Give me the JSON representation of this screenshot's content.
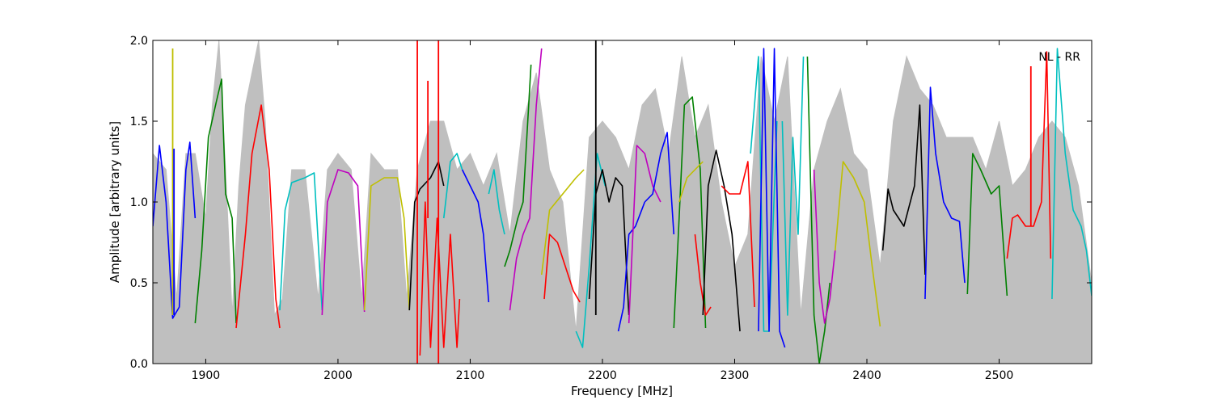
{
  "chart_data": {
    "type": "line",
    "title": "",
    "xlabel": "Frequency [MHz]",
    "ylabel": "Amplitude [arbitrary units]",
    "xlim": [
      1860,
      2570
    ],
    "ylim": [
      0.0,
      2.0
    ],
    "xticks": [
      1900,
      2000,
      2100,
      2200,
      2300,
      2400,
      2500
    ],
    "xtick_labels": [
      "1900",
      "2000",
      "2100",
      "2200",
      "2300",
      "2400",
      "2500"
    ],
    "yticks": [
      0.0,
      0.5,
      1.0,
      1.5,
      2.0
    ],
    "ytick_labels": [
      "0.0",
      "0.5",
      "1.0",
      "1.5",
      "2.0"
    ],
    "grid": false,
    "annotation": "NL - RR",
    "background_series": {
      "color": "#bfbfbf",
      "x": [
        1860,
        1870,
        1878,
        1885,
        1892,
        1900,
        1905,
        1910,
        1915,
        1920,
        1925,
        1930,
        1940,
        1945,
        1952,
        1958,
        1965,
        1975,
        1985,
        1992,
        2000,
        2010,
        2018,
        2025,
        2035,
        2045,
        2052,
        2060,
        2070,
        2080,
        2090,
        2100,
        2110,
        2120,
        2130,
        2140,
        2150,
        2160,
        2170,
        2180,
        2190,
        2200,
        2210,
        2220,
        2230,
        2240,
        2250,
        2260,
        2270,
        2280,
        2290,
        2300,
        2310,
        2320,
        2330,
        2340,
        2350,
        2360,
        2370,
        2380,
        2390,
        2400,
        2410,
        2420,
        2430,
        2440,
        2450,
        2460,
        2470,
        2480,
        2490,
        2500,
        2510,
        2520,
        2530,
        2540,
        2550,
        2560,
        2570
      ],
      "y": [
        1.3,
        1.2,
        0.4,
        1.3,
        1.3,
        0.9,
        1.6,
        2.0,
        1.2,
        0.3,
        1.1,
        1.6,
        2.0,
        1.5,
        0.3,
        0.4,
        1.2,
        1.2,
        0.4,
        1.2,
        1.3,
        1.2,
        0.4,
        1.3,
        1.2,
        1.2,
        0.4,
        1.2,
        1.5,
        1.5,
        1.2,
        1.3,
        1.1,
        1.3,
        0.8,
        1.5,
        1.8,
        1.2,
        1.0,
        0.2,
        1.4,
        1.5,
        1.4,
        1.2,
        1.6,
        1.7,
        1.3,
        1.9,
        1.4,
        1.6,
        1.0,
        0.6,
        0.8,
        1.9,
        1.5,
        1.9,
        0.3,
        1.2,
        1.5,
        1.7,
        1.3,
        1.2,
        0.6,
        1.5,
        1.9,
        1.7,
        1.6,
        1.4,
        1.4,
        1.4,
        1.2,
        1.5,
        1.1,
        1.2,
        1.4,
        1.5,
        1.4,
        1.1,
        0.5
      ]
    },
    "series": [
      {
        "color": "#0000ff",
        "x": [
          1860,
          1865,
          1870,
          1875,
          1880,
          1885,
          1888,
          1892
        ],
        "y": [
          0.85,
          1.35,
          1.0,
          0.28,
          0.35,
          1.2,
          1.37,
          0.9
        ]
      },
      {
        "color": "#008000",
        "x": [
          1892,
          1897,
          1902,
          1908,
          1912,
          1915,
          1920,
          1923
        ],
        "y": [
          0.25,
          0.7,
          1.4,
          1.62,
          1.76,
          1.05,
          0.9,
          0.25
        ]
      },
      {
        "color": "#ff0000",
        "x": [
          1923,
          1930,
          1935,
          1942,
          1948,
          1953,
          1956
        ],
        "y": [
          0.22,
          0.8,
          1.3,
          1.6,
          1.2,
          0.4,
          0.22
        ]
      },
      {
        "color": "#00bfbf",
        "x": [
          1956,
          1960,
          1965,
          1975,
          1982,
          1988
        ],
        "y": [
          0.33,
          0.95,
          1.12,
          1.15,
          1.18,
          0.33
        ]
      },
      {
        "color": "#bf00bf",
        "x": [
          1988,
          1992,
          2000,
          2008,
          2015,
          2020
        ],
        "y": [
          0.3,
          1.0,
          1.2,
          1.18,
          1.1,
          0.32
        ]
      },
      {
        "color": "#bfbf00",
        "x": [
          2020,
          2025,
          2035,
          2045,
          2050,
          2054
        ],
        "y": [
          0.33,
          1.1,
          1.15,
          1.15,
          0.9,
          0.33
        ]
      },
      {
        "color": "#000000",
        "x": [
          2054,
          2058,
          2062,
          2070,
          2076,
          2080
        ],
        "y": [
          0.33,
          1.0,
          1.08,
          1.15,
          1.25,
          1.1
        ]
      },
      {
        "color": "#ff0000",
        "x": [
          2062,
          2066,
          2070,
          2075,
          2080,
          2085,
          2090,
          2092
        ],
        "y": [
          0.05,
          1.0,
          0.1,
          0.9,
          0.1,
          0.8,
          0.1,
          0.4
        ]
      },
      {
        "color": "#00bfbf",
        "x": [
          2080,
          2085,
          2090,
          2094
        ],
        "y": [
          0.9,
          1.25,
          1.3,
          1.2
        ]
      },
      {
        "color": "#0000ff",
        "x": [
          2094,
          2100,
          2106,
          2110,
          2114
        ],
        "y": [
          1.2,
          1.1,
          1.0,
          0.8,
          0.38
        ]
      },
      {
        "color": "#00bfbf",
        "x": [
          2114,
          2118,
          2122,
          2126
        ],
        "y": [
          1.05,
          1.2,
          0.95,
          0.8
        ]
      },
      {
        "color": "#008000",
        "x": [
          2126,
          2130,
          2136,
          2140,
          2146
        ],
        "y": [
          0.6,
          0.7,
          0.9,
          1.0,
          1.85
        ]
      },
      {
        "color": "#bf00bf",
        "x": [
          2130,
          2135,
          2140,
          2145,
          2150,
          2154
        ],
        "y": [
          0.33,
          0.65,
          0.8,
          0.9,
          1.6,
          1.95
        ]
      },
      {
        "color": "#bfbf00",
        "x": [
          2154,
          2160,
          2170,
          2180,
          2186
        ],
        "y": [
          0.55,
          0.95,
          1.05,
          1.15,
          1.2
        ]
      },
      {
        "color": "#ff0000",
        "x": [
          2156,
          2160,
          2166,
          2172,
          2178,
          2183
        ],
        "y": [
          0.4,
          0.8,
          0.75,
          0.6,
          0.45,
          0.38
        ]
      },
      {
        "color": "#00bfbf",
        "x": [
          2180,
          2185,
          2190,
          2196,
          2202
        ],
        "y": [
          0.2,
          0.1,
          0.6,
          1.3,
          1.1
        ]
      },
      {
        "color": "#000000",
        "x": [
          2190,
          2195,
          2200,
          2205,
          2210,
          2215,
          2220
        ],
        "y": [
          0.4,
          1.05,
          1.2,
          1.0,
          1.15,
          1.1,
          0.3
        ]
      },
      {
        "color": "#0000ff",
        "x": [
          2212,
          2216,
          2220,
          2225,
          2232
        ],
        "y": [
          0.2,
          0.35,
          0.8,
          0.85,
          1.0
        ]
      },
      {
        "color": "#bf00bf",
        "x": [
          2220,
          2226,
          2232,
          2238,
          2244
        ],
        "y": [
          0.25,
          1.35,
          1.3,
          1.1,
          1.0
        ]
      },
      {
        "color": "#0000ff",
        "x": [
          2232,
          2238,
          2244,
          2249,
          2254
        ],
        "y": [
          1.0,
          1.05,
          1.3,
          1.43,
          0.8
        ]
      },
      {
        "color": "#008000",
        "x": [
          2254,
          2258,
          2262,
          2268,
          2274,
          2278
        ],
        "y": [
          0.22,
          0.9,
          1.6,
          1.65,
          1.2,
          0.22
        ]
      },
      {
        "color": "#bfbf00",
        "x": [
          2258,
          2264,
          2270,
          2276
        ],
        "y": [
          1.0,
          1.15,
          1.2,
          1.25
        ]
      },
      {
        "color": "#ff0000",
        "x": [
          2270,
          2274,
          2278,
          2282
        ],
        "y": [
          0.8,
          0.5,
          0.3,
          0.35
        ]
      },
      {
        "color": "#000000",
        "x": [
          2276,
          2280,
          2286,
          2292,
          2298,
          2304
        ],
        "y": [
          0.3,
          1.1,
          1.32,
          1.1,
          0.8,
          0.2
        ]
      },
      {
        "color": "#ff0000",
        "x": [
          2290,
          2296,
          2304,
          2310,
          2315
        ],
        "y": [
          1.1,
          1.05,
          1.05,
          1.25,
          0.35
        ]
      },
      {
        "color": "#00bfbf",
        "x": [
          2312,
          2318,
          2322,
          2326,
          2332
        ],
        "y": [
          1.3,
          1.9,
          0.2,
          0.2,
          1.5
        ]
      },
      {
        "color": "#0000ff",
        "x": [
          2318,
          2322,
          2326,
          2330,
          2334,
          2338
        ],
        "y": [
          0.2,
          1.95,
          0.2,
          1.95,
          0.2,
          0.1
        ]
      },
      {
        "color": "#00bfbf",
        "x": [
          2336,
          2340,
          2344,
          2348,
          2352
        ],
        "y": [
          1.5,
          0.3,
          1.4,
          0.8,
          1.9
        ]
      },
      {
        "color": "#008000",
        "x": [
          2355,
          2360,
          2364,
          2368,
          2372
        ],
        "y": [
          1.9,
          0.3,
          0.0,
          0.2,
          0.5
        ]
      },
      {
        "color": "#bf00bf",
        "x": [
          2360,
          2364,
          2368,
          2372,
          2376
        ],
        "y": [
          1.2,
          0.5,
          0.25,
          0.4,
          0.7
        ]
      },
      {
        "color": "#bfbf00",
        "x": [
          2376,
          2382,
          2390,
          2398,
          2404,
          2410
        ],
        "y": [
          0.7,
          1.25,
          1.15,
          1.0,
          0.6,
          0.23
        ]
      },
      {
        "color": "#000000",
        "x": [
          2412,
          2416,
          2420,
          2428,
          2436,
          2440,
          2444
        ],
        "y": [
          0.7,
          1.08,
          0.95,
          0.85,
          1.1,
          1.6,
          0.55
        ]
      },
      {
        "color": "#0000ff",
        "x": [
          2444,
          2448,
          2452,
          2458,
          2464,
          2470,
          2474
        ],
        "y": [
          0.4,
          1.71,
          1.3,
          1.0,
          0.9,
          0.88,
          0.5
        ]
      },
      {
        "color": "#008000",
        "x": [
          2476,
          2480,
          2486,
          2494,
          2500,
          2506
        ],
        "y": [
          0.43,
          1.3,
          1.2,
          1.05,
          1.1,
          0.42
        ]
      },
      {
        "color": "#ff0000",
        "x": [
          2506,
          2510,
          2514,
          2520,
          2526,
          2532,
          2536,
          2539
        ],
        "y": [
          0.65,
          0.9,
          0.92,
          0.85,
          0.85,
          1.0,
          1.93,
          0.65
        ]
      },
      {
        "color": "#00bfbf",
        "x": [
          2540,
          2544,
          2550,
          2556,
          2562,
          2566,
          2570
        ],
        "y": [
          0.4,
          1.95,
          1.3,
          0.95,
          0.85,
          0.7,
          0.42
        ]
      }
    ],
    "spikes": [
      {
        "color": "#bfbf00",
        "x": 1875,
        "y": [
          0.3,
          1.95
        ]
      },
      {
        "color": "#0000ff",
        "x": 1876,
        "y": [
          0.3,
          1.33
        ]
      },
      {
        "color": "#ff0000",
        "x": 2060,
        "y": [
          0.0,
          2.0
        ]
      },
      {
        "color": "#ff0000",
        "x": 2076,
        "y": [
          0.0,
          2.0
        ]
      },
      {
        "color": "#ff0000",
        "x": 2068,
        "y": [
          0.9,
          1.75
        ]
      },
      {
        "color": "#000000",
        "x": 2195,
        "y": [
          0.3,
          2.0
        ]
      },
      {
        "color": "#ff0000",
        "x": 2524,
        "y": [
          0.85,
          1.84
        ]
      }
    ]
  }
}
